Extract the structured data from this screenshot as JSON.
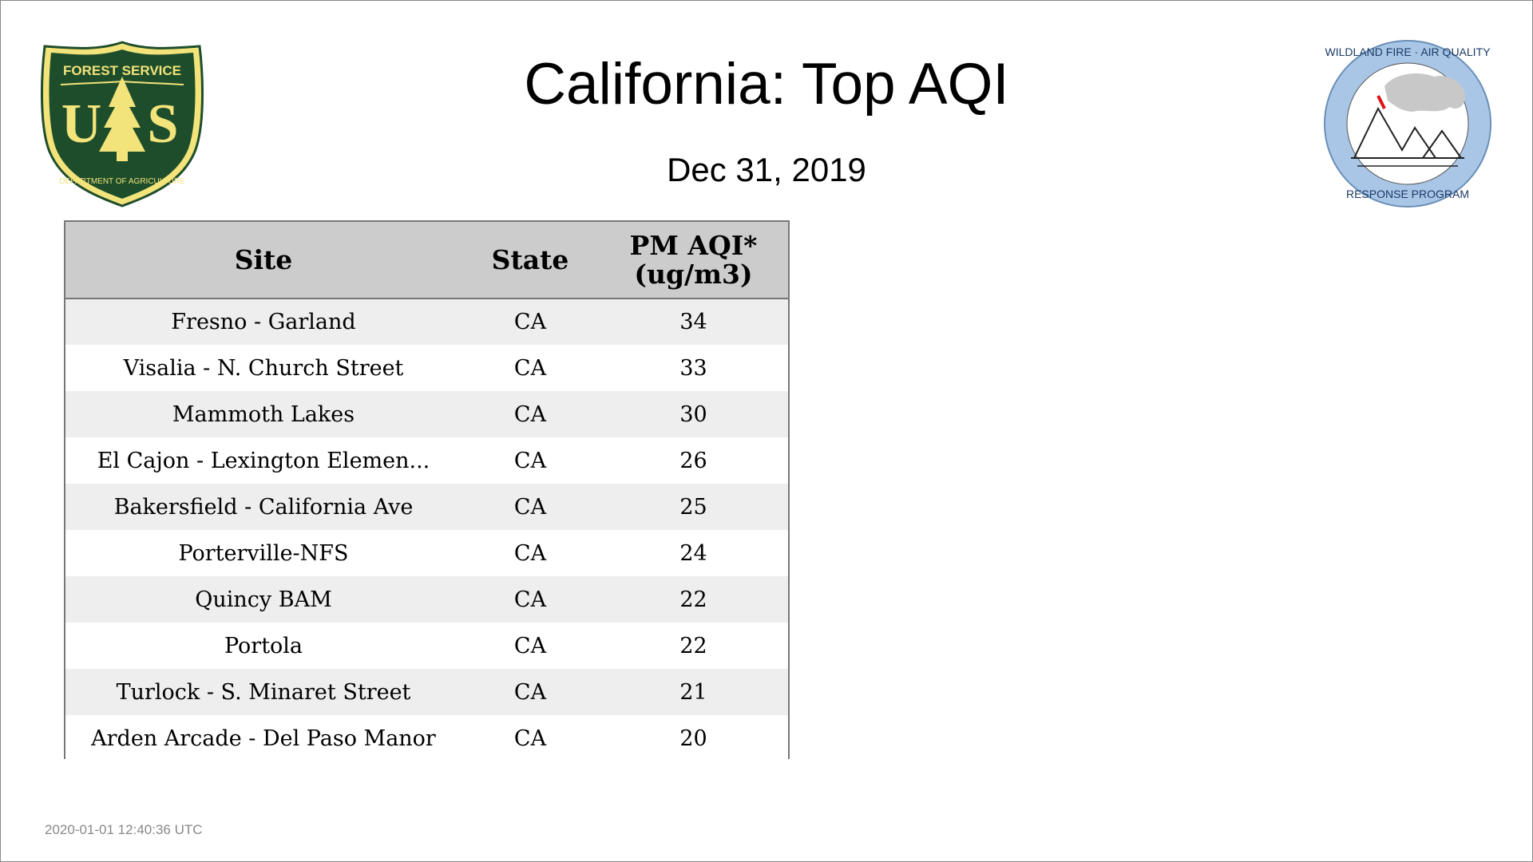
{
  "title": "California: Top AQI",
  "date": "Dec 31, 2019",
  "logos": {
    "left": {
      "type": "forest-service-shield",
      "lettering": [
        "FOREST SERVICE",
        "U",
        "S",
        "DEPARTMENT OF AGRICULTURE"
      ],
      "colors": {
        "shield": "#1e4d2b",
        "emblem": "#f2e37a"
      }
    },
    "right": {
      "type": "wildland-fire-seal",
      "lettering": [
        "WILDLAND FIRE",
        "AIR QUALITY",
        "RESPONSE PROGRAM"
      ],
      "colors": {
        "ring": "#a9c6e6",
        "smoke": "#c8c8c8",
        "flame": "#d11"
      }
    }
  },
  "table": {
    "headers": {
      "site": "Site",
      "state": "State",
      "aqi_line1": "PM AQI*",
      "aqi_line2": "(ug/m3)"
    },
    "rows": [
      {
        "site": "Fresno - Garland",
        "state": "CA",
        "aqi": "34"
      },
      {
        "site": "Visalia - N. Church Street",
        "state": "CA",
        "aqi": "33"
      },
      {
        "site": "Mammoth Lakes",
        "state": "CA",
        "aqi": "30"
      },
      {
        "site": "El Cajon - Lexington Elemen...",
        "state": "CA",
        "aqi": "26"
      },
      {
        "site": "Bakersfield - California Ave",
        "state": "CA",
        "aqi": "25"
      },
      {
        "site": "Porterville-NFS",
        "state": "CA",
        "aqi": "24"
      },
      {
        "site": "Quincy BAM",
        "state": "CA",
        "aqi": "22"
      },
      {
        "site": "Portola",
        "state": "CA",
        "aqi": "22"
      },
      {
        "site": "Turlock - S. Minaret Street",
        "state": "CA",
        "aqi": "21"
      },
      {
        "site": "Arden Arcade - Del Paso Manor",
        "state": "CA",
        "aqi": "20"
      }
    ]
  },
  "timestamp": "2020-01-01 12:40:36 UTC"
}
